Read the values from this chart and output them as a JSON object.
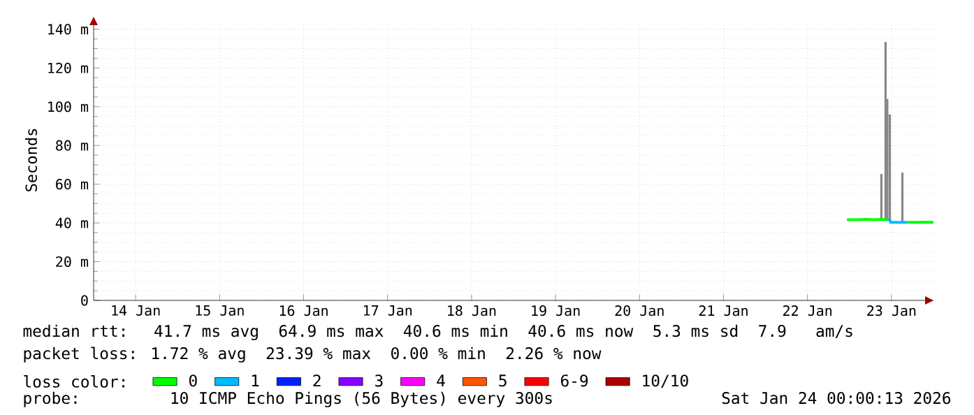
{
  "chart_data": {
    "type": "line",
    "ylabel": "Seconds",
    "xlim": [
      "2026-01-14T00:00",
      "2026-01-24T00:00"
    ],
    "ylim": [
      0,
      145
    ],
    "xticks": [
      {
        "value": "2026-01-14T12:00",
        "label": "14 Jan"
      },
      {
        "value": "2026-01-15T12:00",
        "label": "15 Jan"
      },
      {
        "value": "2026-01-16T12:00",
        "label": "16 Jan"
      },
      {
        "value": "2026-01-17T12:00",
        "label": "17 Jan"
      },
      {
        "value": "2026-01-18T12:00",
        "label": "18 Jan"
      },
      {
        "value": "2026-01-19T12:00",
        "label": "19 Jan"
      },
      {
        "value": "2026-01-20T12:00",
        "label": "20 Jan"
      },
      {
        "value": "2026-01-21T12:00",
        "label": "21 Jan"
      },
      {
        "value": "2026-01-22T12:00",
        "label": "22 Jan"
      },
      {
        "value": "2026-01-23T12:00",
        "label": "23 Jan"
      }
    ],
    "yticks": [
      0,
      {
        "value": 20,
        "label": "20 m"
      },
      {
        "value": 40,
        "label": "40 m"
      },
      {
        "value": 60,
        "label": "60 m"
      },
      {
        "value": 80,
        "label": "80 m"
      },
      {
        "value": 100,
        "label": "100 m"
      },
      {
        "value": 120,
        "label": "120 m"
      },
      {
        "value": 140,
        "label": "140 m"
      }
    ],
    "grid": true,
    "legend": "bottom",
    "legend_title": "loss color:",
    "series": [
      {
        "type": "bar",
        "color": "#888888",
        "x": [
          "2026-01-23T09:07",
          "2026-01-23T10:19",
          "2026-01-23T10:48",
          "2026-01-23T11:31",
          "2026-01-23T15:07"
        ],
        "base": [
          41.8,
          41.8,
          41.8,
          41.8,
          40.3
        ],
        "values": [
          23.5,
          91.7,
          62.2,
          54.2,
          25.7
        ]
      },
      {
        "name": "0",
        "color": "#00ff00",
        "x": [
          "2026-01-22T23:17",
          "2026-01-23T02:24",
          "2026-01-23T04:48",
          "2026-01-23T07:12",
          "2026-01-23T09:07",
          "2026-01-23T10:48",
          "2026-01-23T13:41",
          "2026-01-23T16:34",
          "2026-01-23T19:12",
          "2026-01-23T21:36",
          "2026-01-24T00:00"
        ],
        "values": [
          41.7,
          41.7,
          41.8,
          41.7,
          41.8,
          41.7,
          null,
          40.3,
          40.3,
          40.4,
          40.3
        ]
      },
      {
        "name": "1",
        "color": "#00bbff",
        "x": [
          "2026-01-23T10:48",
          "2026-01-23T11:31",
          "2026-01-23T11:46",
          "2026-01-23T13:12",
          "2026-01-23T14:53",
          "2026-01-23T16:34"
        ],
        "values": [
          41.7,
          41.7,
          40.3,
          40.3,
          40.3,
          40.3
        ]
      },
      {
        "name": "2",
        "color": "#0022ff"
      },
      {
        "name": "3",
        "color": "#8800ff"
      },
      {
        "name": "4",
        "color": "#ff00ff"
      },
      {
        "name": "5",
        "color": "#ff5500"
      },
      {
        "name": "6-9",
        "color": "#ff0000"
      },
      {
        "name": "10/10",
        "color": "#aa0000"
      }
    ],
    "annotations": [
      "median rtt:  41.7 ms avg  64.9 ms max  40.6 ms min  40.6 ms now  5.3 ms sd  7.9   am/s",
      "packet loss: 1.72 % avg  23.39 % max  0.00 % min  2.26 % now",
      "probe:       10 ICMP Echo Pings (56 Bytes) every 300s",
      "Sat Jan 24 00:00:13 2026"
    ]
  }
}
